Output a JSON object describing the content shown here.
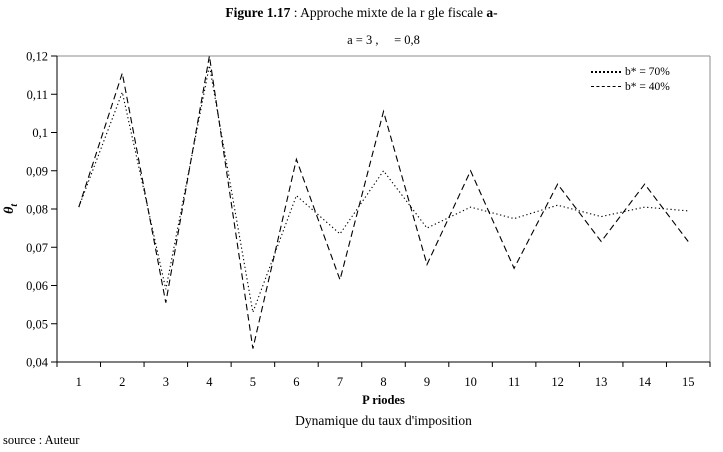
{
  "figure": {
    "label": "Figure 1.17",
    "separator": " : ",
    "title": "Approche mixte de la r gle fiscale ",
    "title_suffix": "a-"
  },
  "subtitle": "a = 3 ,     = 0,8",
  "axes": {
    "y_title_main": "θ",
    "y_title_sub": "t",
    "x_title": "P riodes"
  },
  "caption": "Dynamique du taux d'imposition",
  "source": "source : Auteur",
  "legend": {
    "items": [
      {
        "label": "b* = 70%",
        "style": "dotted"
      },
      {
        "label": "b* = 40%",
        "style": "dashed"
      }
    ]
  },
  "chart_data": {
    "type": "line",
    "title": "a = 3 , λ = 0,8",
    "xlabel": "P riodes",
    "ylabel": "θt",
    "categories": [
      1,
      2,
      3,
      4,
      5,
      6,
      7,
      8,
      9,
      10,
      11,
      12,
      13,
      14,
      15
    ],
    "series": [
      {
        "name": "b* = 70%",
        "line_style": "dotted",
        "color": "#000000",
        "values": [
          0.0805,
          0.1105,
          0.059,
          0.1175,
          0.053,
          0.0835,
          0.0735,
          0.09,
          0.075,
          0.0805,
          0.0775,
          0.081,
          0.078,
          0.0805,
          0.0795
        ]
      },
      {
        "name": "b* = 40%",
        "line_style": "dashed",
        "color": "#000000",
        "values": [
          0.0805,
          0.1155,
          0.0555,
          0.12,
          0.0435,
          0.093,
          0.0615,
          0.1055,
          0.0655,
          0.09,
          0.0645,
          0.0865,
          0.0715,
          0.0865,
          0.0715
        ]
      }
    ],
    "ylim": [
      0.04,
      0.12
    ],
    "ytick_step": 0.01,
    "yticklabels": [
      "0,04",
      "0,05",
      "0,06",
      "0,07",
      "0,08",
      "0,09",
      "0,1",
      "0,11",
      "0,12"
    ],
    "grid": false,
    "legend_position": "top-right-inside",
    "plot_border_color": "#8c8c8c",
    "axis_color": "#000000"
  }
}
